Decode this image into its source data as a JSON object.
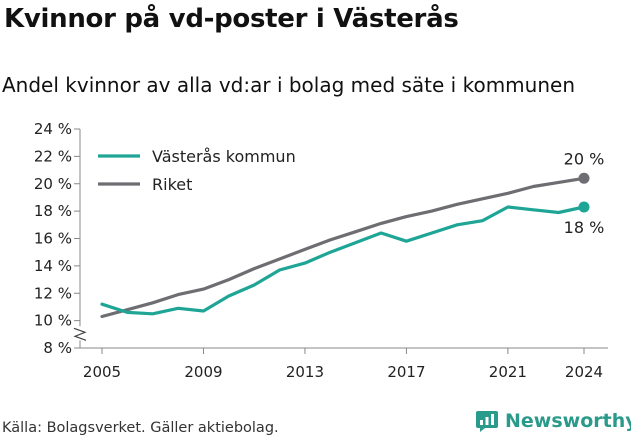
{
  "title": "Kvinnor på vd-poster i Västerås",
  "subtitle": "Andel kvinnor av alla vd:ar i bolag med säte i kommunen",
  "source": "Källa: Bolagsverket. Gäller aktiebolag.",
  "brand": "Newsworthy",
  "colors": {
    "vasteras": "#1ea596",
    "riket": "#6e6e72",
    "brand": "#2a9a8a"
  },
  "chart_data": {
    "type": "line",
    "title": "Kvinnor på vd-poster i Västerås",
    "subtitle": "Andel kvinnor av alla vd:ar i bolag med säte i kommunen",
    "x": [
      2005,
      2006,
      2007,
      2008,
      2009,
      2010,
      2011,
      2012,
      2013,
      2014,
      2015,
      2016,
      2017,
      2018,
      2019,
      2020,
      2021,
      2022,
      2023,
      2024
    ],
    "x_ticks": [
      "2005",
      "2009",
      "2013",
      "2017",
      "2021",
      "2024"
    ],
    "y_ticks": [
      "8 %",
      "10 %",
      "12 %",
      "14 %",
      "16 %",
      "18 %",
      "20 %",
      "22 %",
      "24 %"
    ],
    "ylim": [
      8,
      24
    ],
    "y_axis_break": true,
    "grid": false,
    "legend_position": "top-left",
    "series": [
      {
        "name": "Västerås kommun",
        "color": "#1ea596",
        "values": [
          11.2,
          10.6,
          10.5,
          10.9,
          10.7,
          11.8,
          12.6,
          13.7,
          14.2,
          15.0,
          15.7,
          16.4,
          15.8,
          16.4,
          17.0,
          17.3,
          18.3,
          18.1,
          17.9,
          18.3
        ],
        "end_label": "18 %"
      },
      {
        "name": "Riket",
        "color": "#6e6e72",
        "values": [
          10.3,
          10.8,
          11.3,
          11.9,
          12.3,
          13.0,
          13.8,
          14.5,
          15.2,
          15.9,
          16.5,
          17.1,
          17.6,
          18.0,
          18.5,
          18.9,
          19.3,
          19.8,
          20.1,
          20.4
        ],
        "end_label": "20 %"
      }
    ]
  }
}
